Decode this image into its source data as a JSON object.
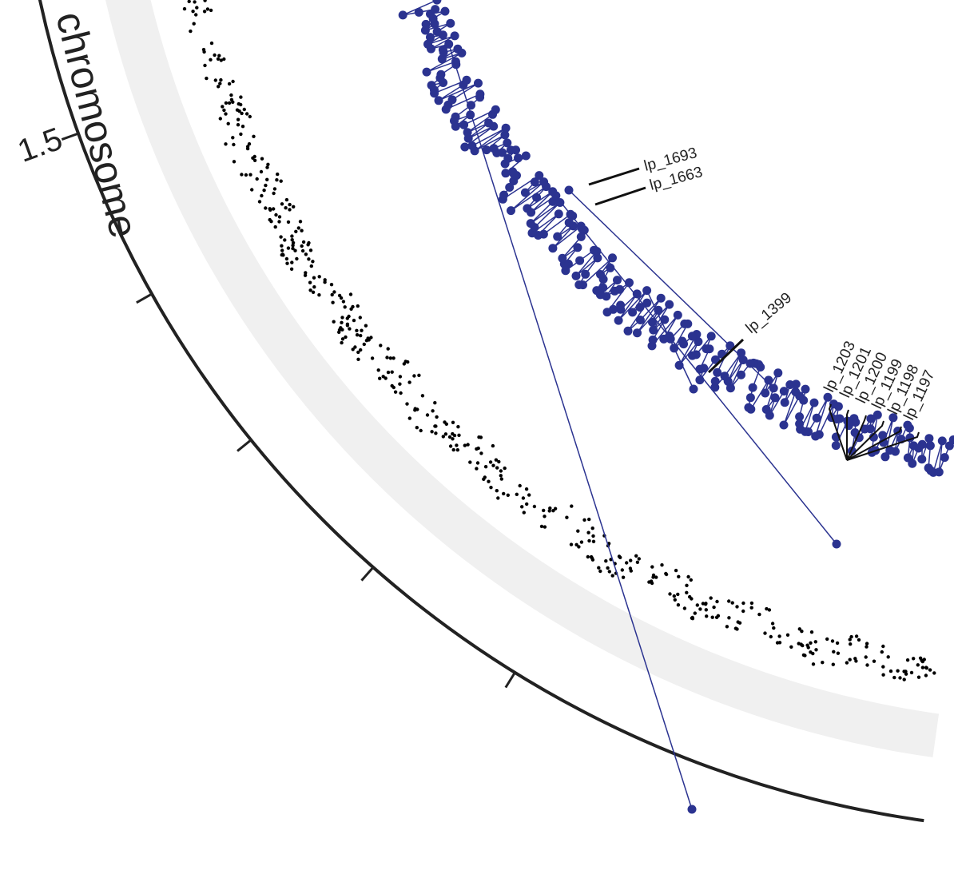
{
  "chart_data": {
    "type": "scatter",
    "layout": "circular genome plot (partial view)",
    "track_title": "chromosome",
    "position_axis": {
      "tick_labels": [
        {
          "position_mb": 1.5,
          "label": "1.5"
        }
      ],
      "minor_tick_positions_mb": [
        1.0,
        1.1,
        1.2,
        1.3,
        1.4,
        1.6,
        1.7,
        1.8,
        1.9
      ]
    },
    "series": [
      {
        "color": "#2b3390",
        "style": "points joined by line",
        "gene_labels": [
          "lp_1693",
          "lp_1663",
          "lp_1399",
          "lp_1203",
          "lp_1201",
          "lp_1200",
          "lp_1199",
          "lp_1198",
          "lp_1197"
        ]
      },
      {
        "color": "#000000",
        "style": "small points"
      }
    ],
    "colors": {
      "ring_band": "#f0f0f0",
      "axis": "#222222",
      "outer_series": "#2b3390",
      "inner_series": "#000000"
    }
  }
}
